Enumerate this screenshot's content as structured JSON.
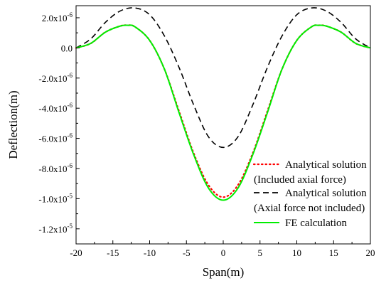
{
  "chart_data": {
    "type": "line",
    "xlabel": "Span(m)",
    "ylabel": "Deflection(m)",
    "xlim": [
      -20,
      20
    ],
    "ylim": [
      -1.3e-05,
      2.8e-06
    ],
    "x_ticks": [
      -20,
      -15,
      -10,
      -5,
      0,
      5,
      10,
      15,
      20
    ],
    "x_tick_labels": [
      "-20",
      "-15",
      "-10",
      "-5",
      "0",
      "5",
      "10",
      "15",
      "20"
    ],
    "y_ticks": [
      {
        "value": 2e-06,
        "mantissa": "2.0x10",
        "exponent": "-6"
      },
      {
        "value": 0.0,
        "mantissa": "0.0",
        "exponent": ""
      },
      {
        "value": -2e-06,
        "mantissa": "-2.0x10",
        "exponent": "-6"
      },
      {
        "value": -4e-06,
        "mantissa": "-4.0x10",
        "exponent": "-6"
      },
      {
        "value": -6e-06,
        "mantissa": "-6.0x10",
        "exponent": "-6"
      },
      {
        "value": -8e-06,
        "mantissa": "-8.0x10",
        "exponent": "-6"
      },
      {
        "value": -1e-05,
        "mantissa": "-1.0x10",
        "exponent": "-5"
      },
      {
        "value": -1.2e-05,
        "mantissa": "-1.2x10",
        "exponent": "-5"
      }
    ],
    "legend_position": "right",
    "series": [
      {
        "name": "Analytical solution (Included axial force)",
        "legend_lines": [
          "Analytical solution",
          "(Included axial force)"
        ],
        "style": "dotted",
        "color": "#ff0000",
        "x": [
          -20,
          -18,
          -16,
          -14,
          -13,
          -12,
          -10,
          -8,
          -6,
          -4,
          -2,
          0,
          2,
          4,
          6,
          8,
          10,
          12,
          13,
          14,
          16,
          18,
          20
        ],
        "y": [
          0,
          3e-07,
          1.05e-06,
          1.45e-06,
          1.5e-06,
          1.4e-06,
          5e-07,
          -1.4e-06,
          -4.2e-06,
          -7e-06,
          -9.1e-06,
          -9.9e-06,
          -9.1e-06,
          -7e-06,
          -4.2e-06,
          -1.4e-06,
          5e-07,
          1.4e-06,
          1.5e-06,
          1.45e-06,
          1.05e-06,
          3e-07,
          0
        ]
      },
      {
        "name": "Analytical solution (Axial force not included)",
        "legend_lines": [
          "Analytical solution",
          "(Axial force not included)"
        ],
        "style": "dashed",
        "color": "#000000",
        "x": [
          -20,
          -18,
          -16,
          -14,
          -12,
          -10,
          -8,
          -6,
          -4,
          -2,
          0,
          2,
          4,
          6,
          8,
          10,
          12,
          14,
          16,
          18,
          20
        ],
        "y": [
          0,
          6e-07,
          1.7e-06,
          2.45e-06,
          2.65e-06,
          2.2e-06,
          8e-07,
          -1.3e-06,
          -3.8e-06,
          -5.9e-06,
          -6.6e-06,
          -5.9e-06,
          -3.8e-06,
          -1.3e-06,
          8e-07,
          2.2e-06,
          2.65e-06,
          2.45e-06,
          1.7e-06,
          6e-07,
          0
        ]
      },
      {
        "name": "FE calculation",
        "legend_lines": [
          "FE calculation"
        ],
        "style": "solid",
        "color": "#00ee00",
        "x": [
          -20,
          -18,
          -16,
          -14,
          -13,
          -12,
          -10,
          -8,
          -6,
          -4,
          -2,
          0,
          2,
          4,
          6,
          8,
          10,
          12,
          13,
          14,
          16,
          18,
          20
        ],
        "y": [
          0,
          3e-07,
          1.05e-06,
          1.45e-06,
          1.5e-06,
          1.4e-06,
          5e-07,
          -1.4e-06,
          -4.3e-06,
          -7.1e-06,
          -9.3e-06,
          -1.01e-05,
          -9.3e-06,
          -7.1e-06,
          -4.3e-06,
          -1.4e-06,
          5e-07,
          1.4e-06,
          1.5e-06,
          1.45e-06,
          1.05e-06,
          3e-07,
          0
        ]
      }
    ]
  }
}
